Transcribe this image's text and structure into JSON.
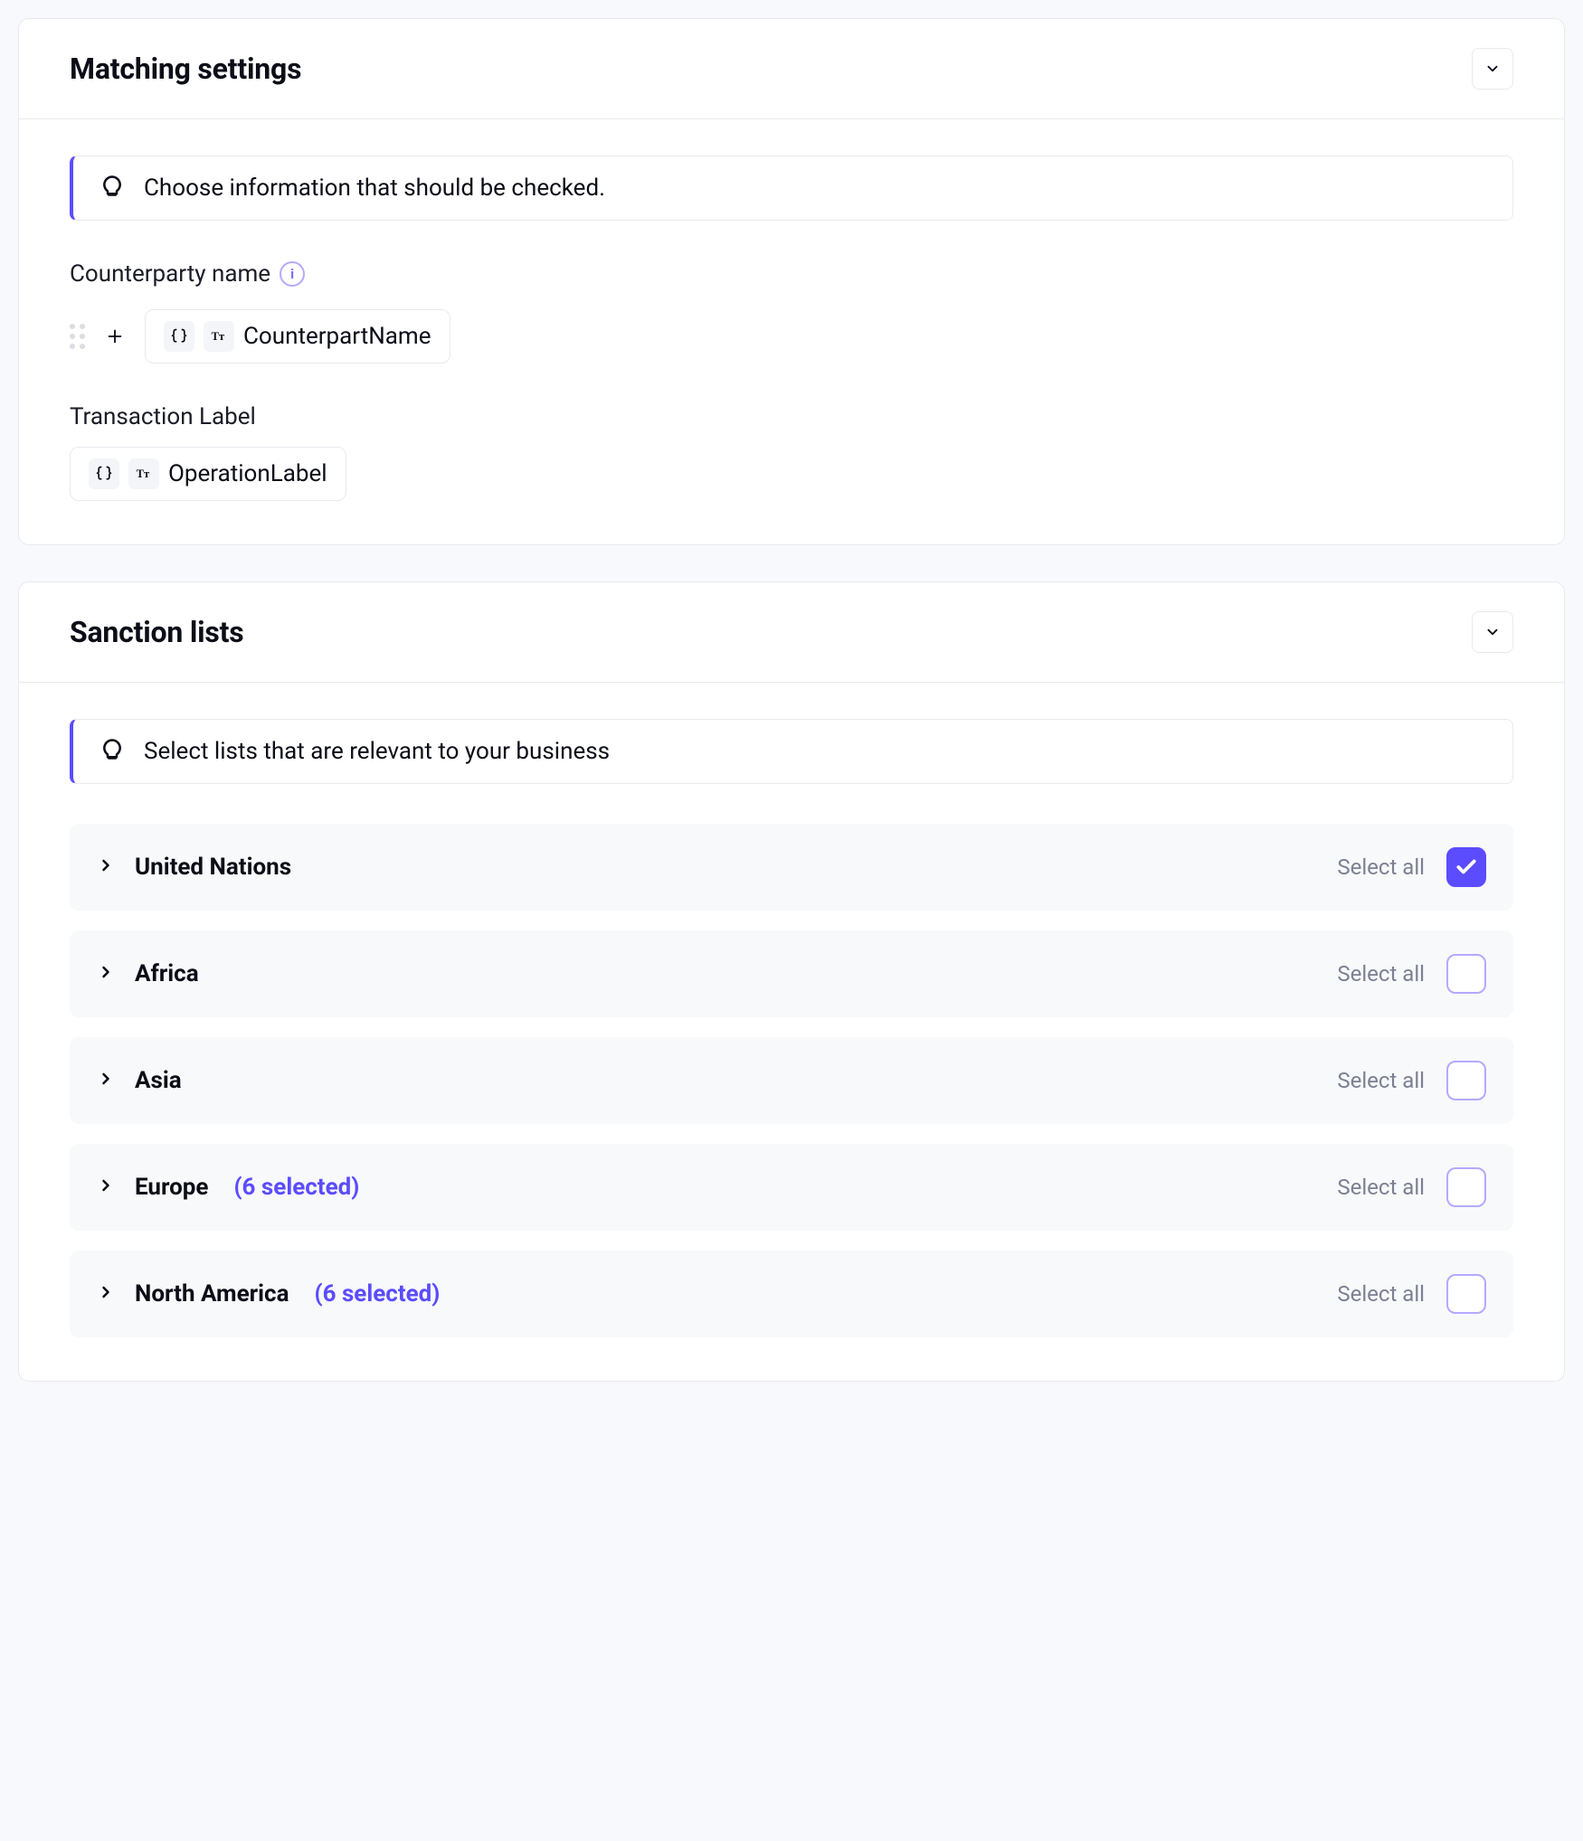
{
  "colors": {
    "accent": "#5b4cff",
    "accent_light": "#b4a9ff",
    "bg": "#f8f9fc",
    "card_bg": "#ffffff",
    "border": "#e9eaee",
    "row_bg": "#f8f9fb",
    "text": "#0b0d17",
    "muted": "#7c8091"
  },
  "matching": {
    "title": "Matching settings",
    "tip": "Choose information that should be checked.",
    "counterparty_label": "Counterparty name",
    "counterparty_token": "CounterpartName",
    "transaction_label": "Transaction Label",
    "transaction_token": "OperationLabel"
  },
  "sanctions": {
    "title": "Sanction lists",
    "tip": "Select lists that are relevant to your business",
    "select_all_label": "Select all",
    "rows": [
      {
        "name": "United Nations",
        "selected_count": null,
        "checked": true
      },
      {
        "name": "Africa",
        "selected_count": null,
        "checked": false
      },
      {
        "name": "Asia",
        "selected_count": null,
        "checked": false
      },
      {
        "name": "Europe",
        "selected_count": "(6 selected)",
        "checked": false
      },
      {
        "name": "North America",
        "selected_count": "(6 selected)",
        "checked": false
      }
    ]
  }
}
